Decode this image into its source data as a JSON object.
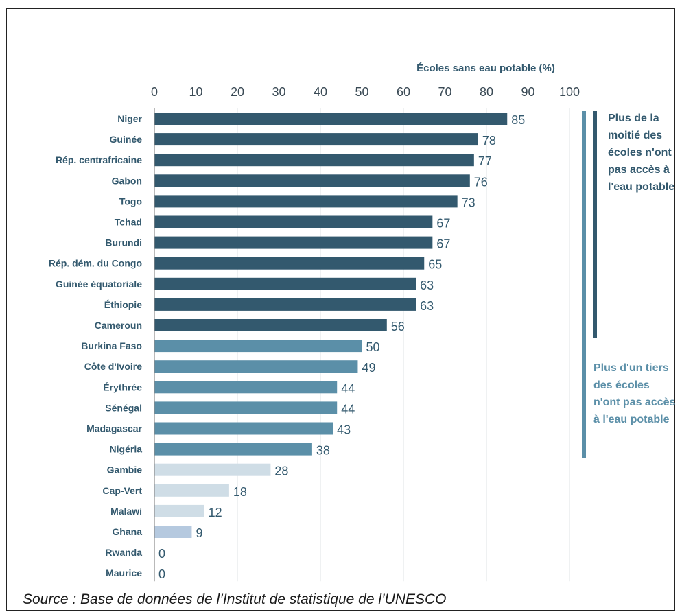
{
  "chart_data": {
    "type": "bar",
    "orientation": "horizontal",
    "title": "Écoles sans eau potable (%)",
    "xlim": [
      0,
      100
    ],
    "ticks": [
      "0",
      "10",
      "20",
      "30",
      "40",
      "50",
      "60",
      "70",
      "80",
      "90",
      "100"
    ],
    "grid": true,
    "categories": [
      "Niger",
      "Guinée",
      "Rép. centrafricaine",
      "Gabon",
      "Togo",
      "Tchad",
      "Burundi",
      "Rép. dém. du Congo",
      "Guinée équatoriale",
      "Éthiopie",
      "Cameroun",
      "Burkina Faso",
      "Côte d'Ivoire",
      "Érythrée",
      "Sénégal",
      "Madagascar",
      "Nigéria",
      "Gambie",
      "Cap-Vert",
      "Malawi",
      "Ghana",
      "Rwanda",
      "Maurice"
    ],
    "values": [
      85,
      78,
      77,
      76,
      73,
      67,
      67,
      65,
      63,
      63,
      56,
      50,
      49,
      44,
      44,
      43,
      38,
      28,
      18,
      12,
      9,
      0,
      0
    ],
    "colors": {
      "dark": "#33596e",
      "medium": "#5b8fa8",
      "light": "#cfdde6",
      "ghana": "#b5c9df"
    },
    "bar_groups": [
      "dark",
      "dark",
      "dark",
      "dark",
      "dark",
      "dark",
      "dark",
      "dark",
      "dark",
      "dark",
      "dark",
      "medium",
      "medium",
      "medium",
      "medium",
      "medium",
      "medium",
      "light",
      "light",
      "light",
      "ghana",
      "light",
      "light"
    ]
  },
  "annotations": {
    "majority": "Plus de la moitié des écoles n'ont pas accès à l'eau potable",
    "third": "Plus d'un tiers des écoles n'ont pas accès à l'eau potable"
  },
  "source": "Source : Base de données de l’Institut de statistique de l’UNESCO"
}
